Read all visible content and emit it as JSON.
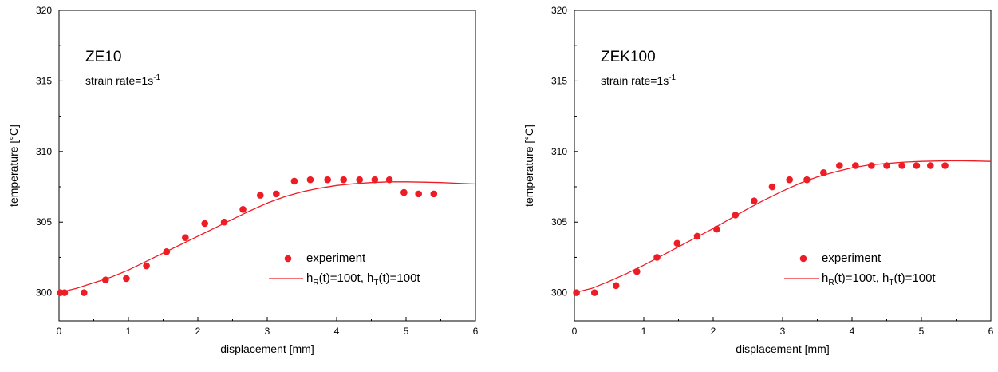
{
  "colors": {
    "series": "#ee1c25",
    "axis": "#000000"
  },
  "chart_data": [
    {
      "type": "scatter",
      "annotation": {
        "title": "ZE10",
        "rate_prefix": "strain rate=1s",
        "rate_exp": "-1"
      },
      "xlabel": "displacement [mm]",
      "ylabel": "temperature [°C]",
      "xlim": [
        0,
        6
      ],
      "ylim": [
        298,
        320
      ],
      "x_ticks": [
        0,
        1,
        2,
        3,
        4,
        5,
        6
      ],
      "y_ticks": [
        300,
        305,
        310,
        315,
        320
      ],
      "grid": false,
      "legend_position": "lower-right",
      "series": [
        {
          "name": "experiment",
          "kind": "points",
          "x": [
            0.02,
            0.08,
            0.36,
            0.67,
            0.97,
            1.26,
            1.55,
            1.82,
            2.1,
            2.38,
            2.65,
            2.9,
            3.13,
            3.39,
            3.62,
            3.87,
            4.1,
            4.33,
            4.55,
            4.76,
            4.97,
            5.18,
            5.4
          ],
          "y": [
            300,
            300,
            300,
            300.9,
            301,
            301.9,
            302.9,
            303.9,
            304.9,
            305,
            305.9,
            306.9,
            307,
            307.9,
            308,
            308,
            308,
            308,
            308,
            308,
            307.1,
            307,
            307
          ]
        },
        {
          "name_main": "h",
          "name_sub1": "R",
          "name_mid": "(t)=100t, h",
          "name_sub2": "T",
          "name_tail": "(t)=100t",
          "kind": "line",
          "x": [
            0,
            0.25,
            0.5,
            0.75,
            1.0,
            1.25,
            1.5,
            1.75,
            2.0,
            2.25,
            2.5,
            2.75,
            3.0,
            3.25,
            3.5,
            3.75,
            4.0,
            4.25,
            4.5,
            4.75,
            5.0,
            5.25,
            5.5,
            5.75,
            6.0
          ],
          "y": [
            300.0,
            300.3,
            300.7,
            301.1,
            301.6,
            302.2,
            302.8,
            303.4,
            304.0,
            304.6,
            305.2,
            305.8,
            306.35,
            306.8,
            307.15,
            307.4,
            307.6,
            307.72,
            307.8,
            307.85,
            307.85,
            307.83,
            307.8,
            307.75,
            307.7
          ]
        }
      ]
    },
    {
      "type": "scatter",
      "annotation": {
        "title": "ZEK100",
        "rate_prefix": "strain rate=1s",
        "rate_exp": "-1"
      },
      "xlabel": "displacement [mm]",
      "ylabel": "temperature [°C]",
      "xlim": [
        0,
        6
      ],
      "ylim": [
        298,
        320
      ],
      "x_ticks": [
        0,
        1,
        2,
        3,
        4,
        5,
        6
      ],
      "y_ticks": [
        300,
        305,
        310,
        315,
        320
      ],
      "grid": false,
      "legend_position": "lower-right",
      "series": [
        {
          "name": "experiment",
          "kind": "points",
          "x": [
            0.03,
            0.29,
            0.6,
            0.9,
            1.19,
            1.48,
            1.77,
            2.05,
            2.32,
            2.59,
            2.85,
            3.1,
            3.35,
            3.59,
            3.82,
            4.05,
            4.28,
            4.5,
            4.72,
            4.93,
            5.13,
            5.34
          ],
          "y": [
            300,
            300,
            300.5,
            301.5,
            302.5,
            303.5,
            304,
            304.5,
            305.5,
            306.5,
            307.5,
            308,
            308,
            308.5,
            309,
            309,
            309,
            309,
            309,
            309,
            309,
            309
          ]
        },
        {
          "name_main": "h",
          "name_sub1": "R",
          "name_mid": "(t)=100t, h",
          "name_sub2": "T",
          "name_tail": "(t)=100t",
          "kind": "line",
          "x": [
            0,
            0.25,
            0.5,
            0.75,
            1.0,
            1.25,
            1.5,
            1.75,
            2.0,
            2.25,
            2.5,
            2.75,
            3.0,
            3.25,
            3.5,
            3.75,
            4.0,
            4.25,
            4.5,
            4.75,
            5.0,
            5.25,
            5.5,
            5.75,
            6.0
          ],
          "y": [
            300.0,
            300.3,
            300.8,
            301.35,
            301.95,
            302.6,
            303.25,
            303.9,
            304.55,
            305.25,
            305.95,
            306.6,
            307.2,
            307.75,
            308.2,
            308.55,
            308.85,
            309.05,
            309.15,
            309.25,
            309.3,
            309.33,
            309.35,
            309.33,
            309.3
          ]
        }
      ]
    }
  ]
}
